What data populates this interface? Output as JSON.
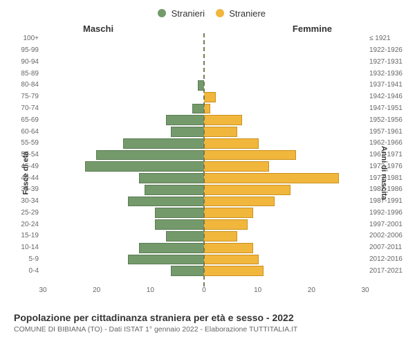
{
  "legend": {
    "male_label": "Stranieri",
    "female_label": "Straniere"
  },
  "headers": {
    "male": "Maschi",
    "female": "Femmine"
  },
  "axis_titles": {
    "left": "Fasce di età",
    "right": "Anni di nascita"
  },
  "colors": {
    "male_fill": "#749a6c",
    "male_border": "#5a7a53",
    "female_fill": "#f1b63c",
    "female_border": "#c9921f",
    "background": "#ffffff",
    "text": "#333333",
    "subtext": "#666666",
    "center_line": "#7a7a56"
  },
  "chart": {
    "type": "population-pyramid",
    "xlim": 30,
    "xticks": [
      30,
      20,
      10,
      0,
      10,
      20,
      30
    ],
    "bands": [
      {
        "age": "100+",
        "birth": "≤ 1921",
        "m": 0,
        "f": 0
      },
      {
        "age": "95-99",
        "birth": "1922-1926",
        "m": 0,
        "f": 0
      },
      {
        "age": "90-94",
        "birth": "1927-1931",
        "m": 0,
        "f": 0
      },
      {
        "age": "85-89",
        "birth": "1932-1936",
        "m": 0,
        "f": 0
      },
      {
        "age": "80-84",
        "birth": "1937-1941",
        "m": 1,
        "f": 0
      },
      {
        "age": "75-79",
        "birth": "1942-1946",
        "m": 0,
        "f": 2
      },
      {
        "age": "70-74",
        "birth": "1947-1951",
        "m": 2,
        "f": 1
      },
      {
        "age": "65-69",
        "birth": "1952-1956",
        "m": 7,
        "f": 7
      },
      {
        "age": "60-64",
        "birth": "1957-1961",
        "m": 6,
        "f": 6
      },
      {
        "age": "55-59",
        "birth": "1962-1966",
        "m": 15,
        "f": 10
      },
      {
        "age": "50-54",
        "birth": "1967-1971",
        "m": 20,
        "f": 17
      },
      {
        "age": "45-49",
        "birth": "1972-1976",
        "m": 22,
        "f": 12
      },
      {
        "age": "40-44",
        "birth": "1977-1981",
        "m": 12,
        "f": 25
      },
      {
        "age": "35-39",
        "birth": "1982-1986",
        "m": 11,
        "f": 16
      },
      {
        "age": "30-34",
        "birth": "1987-1991",
        "m": 14,
        "f": 13
      },
      {
        "age": "25-29",
        "birth": "1992-1996",
        "m": 9,
        "f": 9
      },
      {
        "age": "20-24",
        "birth": "1997-2001",
        "m": 9,
        "f": 8
      },
      {
        "age": "15-19",
        "birth": "2002-2006",
        "m": 7,
        "f": 6
      },
      {
        "age": "10-14",
        "birth": "2007-2011",
        "m": 12,
        "f": 9
      },
      {
        "age": "5-9",
        "birth": "2012-2016",
        "m": 14,
        "f": 10
      },
      {
        "age": "0-4",
        "birth": "2017-2021",
        "m": 6,
        "f": 11
      }
    ]
  },
  "footer": {
    "title": "Popolazione per cittadinanza straniera per età e sesso - 2022",
    "subtitle": "COMUNE DI BIBIANA (TO) - Dati ISTAT 1° gennaio 2022 - Elaborazione TUTTITALIA.IT"
  }
}
